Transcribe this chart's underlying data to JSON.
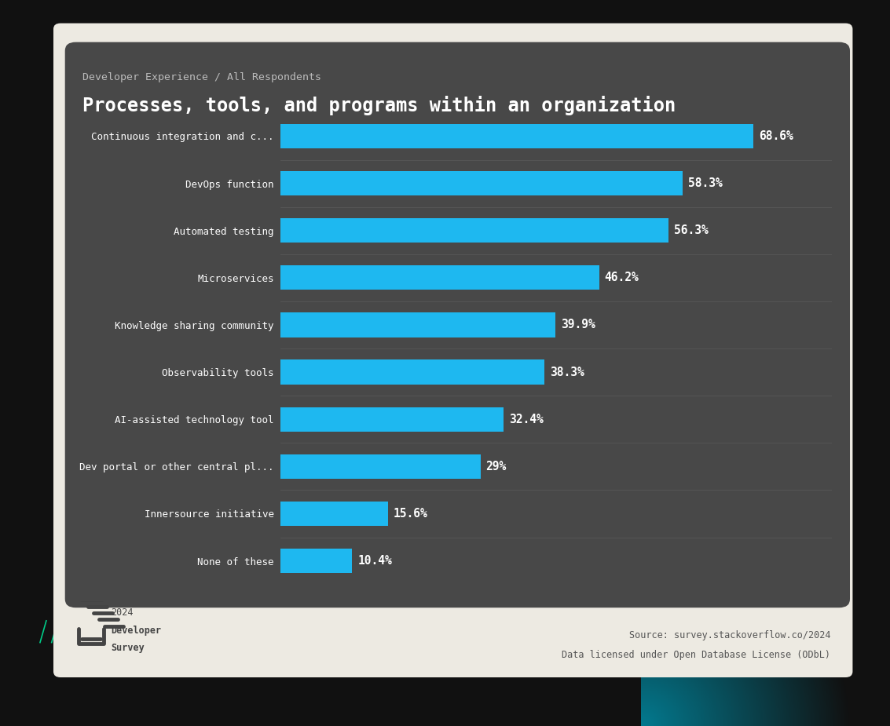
{
  "subtitle": "Developer Experience / All Respondents",
  "title": "Processes, tools, and programs within an organization",
  "categories": [
    "Continuous integration and c...",
    "DevOps function",
    "Automated testing",
    "Microservices",
    "Knowledge sharing community",
    "Observability tools",
    "AI-assisted technology tool",
    "Dev portal or other central pl...",
    "Innersource initiative",
    "None of these"
  ],
  "values": [
    68.6,
    58.3,
    56.3,
    46.2,
    39.9,
    38.3,
    32.4,
    29.0,
    15.6,
    10.4
  ],
  "labels": [
    "68.6%",
    "58.3%",
    "56.3%",
    "46.2%",
    "39.9%",
    "38.3%",
    "32.4%",
    "29%",
    "15.6%",
    "10.4%"
  ],
  "bar_color": "#1eb8f0",
  "label_color": "#ffffff",
  "chart_bg": "#484848",
  "cream_bg": "#edeae2",
  "black_bg": "#111111",
  "title_color": "#ffffff",
  "subtitle_color": "#bbbbbb",
  "category_label_color": "#ffffff",
  "source_text_line1": "Source: survey.stackoverflow.co/2024",
  "source_text_line2": "Data licensed under Open Database License (ODbL)",
  "source_color": "#555555",
  "logo_text_color": "#444444",
  "alura_color": "#ffffff",
  "green_lines_color": "#00cc88",
  "teal_gradient_right": "#008899",
  "xlim_max": 80
}
